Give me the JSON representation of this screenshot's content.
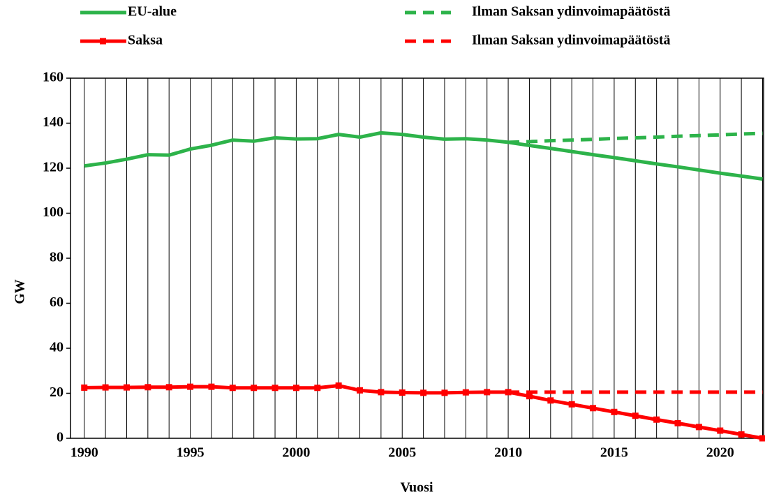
{
  "chart_data": {
    "type": "line",
    "x_label": "Vuosi",
    "y_label": "GW",
    "x": [
      1990,
      1991,
      1992,
      1993,
      1994,
      1995,
      1996,
      1997,
      1998,
      1999,
      2000,
      2001,
      2002,
      2003,
      2004,
      2005,
      2006,
      2007,
      2008,
      2009,
      2010,
      2011,
      2012,
      2013,
      2014,
      2015,
      2016,
      2017,
      2018,
      2019,
      2020,
      2021,
      2022
    ],
    "series": [
      {
        "name": "EU-alue",
        "color": "#2db34a",
        "dash": false,
        "marker": "none",
        "values": [
          121,
          122.3,
          124,
          126,
          125.8,
          128.5,
          130.2,
          132.5,
          132,
          133.5,
          133,
          133.1,
          135,
          133.8,
          135.7,
          135,
          133.8,
          132.9,
          133.1,
          132.5,
          131.5,
          130.1,
          128.8,
          127.4,
          126,
          124.7,
          123.3,
          121.9,
          120.6,
          119.2,
          117.8,
          116.5,
          115.2
        ]
      },
      {
        "name": "Ilman Saksan ydinvoimapäätöstä",
        "color": "#2db34a",
        "dash": true,
        "marker": "none",
        "values": [
          null,
          null,
          null,
          null,
          null,
          null,
          null,
          null,
          null,
          null,
          null,
          null,
          null,
          null,
          null,
          null,
          null,
          null,
          null,
          null,
          131.5,
          131.8,
          132.2,
          132.5,
          132.8,
          133.2,
          133.5,
          133.8,
          134.2,
          134.5,
          134.8,
          135.2,
          135.5
        ]
      },
      {
        "name": "Saksa",
        "color": "#ff0000",
        "dash": false,
        "marker": "square",
        "values": [
          22.5,
          22.6,
          22.6,
          22.7,
          22.7,
          22.9,
          22.9,
          22.4,
          22.4,
          22.4,
          22.4,
          22.4,
          23.4,
          21.3,
          20.5,
          20.3,
          20.2,
          20.2,
          20.4,
          20.5,
          20.5,
          18.7,
          16.8,
          15.1,
          13.4,
          11.7,
          10,
          8.3,
          6.7,
          5,
          3.4,
          1.7,
          0
        ]
      },
      {
        "name": "Ilman Saksan ydinvoimapäätöstä",
        "color": "#ff0000",
        "dash": true,
        "marker": "none",
        "values": [
          null,
          null,
          null,
          null,
          null,
          null,
          null,
          null,
          null,
          null,
          null,
          null,
          null,
          null,
          null,
          null,
          null,
          null,
          null,
          null,
          20.5,
          20.5,
          20.5,
          20.5,
          20.5,
          20.5,
          20.5,
          20.5,
          20.5,
          20.5,
          20.5,
          20.5,
          20.5
        ]
      }
    ],
    "xlim": [
      1989.35,
      2022.05
    ],
    "xticks": [
      1990,
      1995,
      2000,
      2005,
      2010,
      2015,
      2020
    ],
    "xgrid_ticks": [
      1990,
      1991,
      1992,
      1993,
      1994,
      1995,
      1996,
      1997,
      1998,
      1999,
      2000,
      2001,
      2002,
      2003,
      2004,
      2005,
      2006,
      2007,
      2008,
      2009,
      2010,
      2011,
      2012,
      2013,
      2014,
      2015,
      2016,
      2017,
      2018,
      2019,
      2020,
      2021,
      2022
    ],
    "ylim": [
      0,
      160
    ],
    "yticks": [
      0,
      20,
      40,
      60,
      80,
      100,
      120,
      140,
      160
    ],
    "grid": true
  }
}
